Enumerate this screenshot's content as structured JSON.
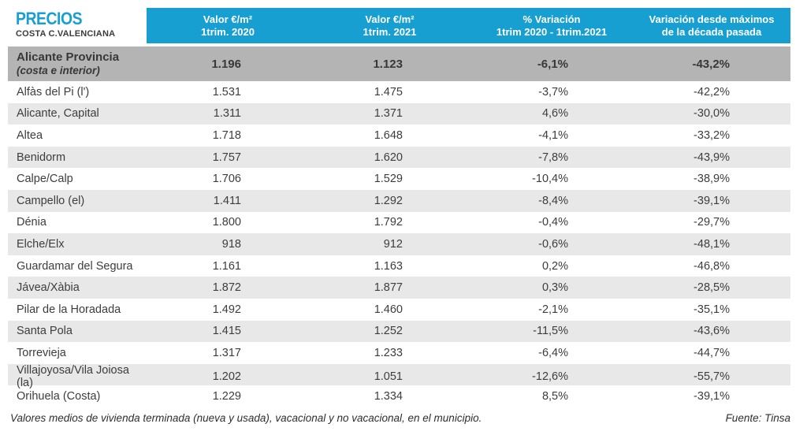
{
  "title": {
    "main": "PRECIOS",
    "subtitle": "COSTA C.VALENCIANA"
  },
  "colors": {
    "accent": "#179fd1",
    "summary_row_bg": "#b4b4b4",
    "stripe_bg": "#e8e8e8",
    "text": "#3d3d3d"
  },
  "table": {
    "headers": [
      {
        "line1": "Valor €/m²",
        "line2": "1trim. 2020"
      },
      {
        "line1": "Valor €/m²",
        "line2": "1trim. 2021"
      },
      {
        "line1": "% Variación",
        "line2": "1trim 2020 - 1trim.2021"
      },
      {
        "line1": "Variación desde máximos",
        "line2": "de la década pasada"
      }
    ],
    "summary_row": {
      "name": "Alicante Provincia",
      "note": "(costa e interior)",
      "values": [
        "1.196",
        "1.123",
        "-6,1%",
        "-43,2%"
      ]
    },
    "rows": [
      {
        "name": "Alfàs del Pi (l')",
        "values": [
          "1.531",
          "1.475",
          "-3,7%",
          "-42,2%"
        ]
      },
      {
        "name": "Alicante, Capital",
        "values": [
          "1.311",
          "1.371",
          "4,6%",
          "-30,0%"
        ]
      },
      {
        "name": "Altea",
        "values": [
          "1.718",
          "1.648",
          "-4,1%",
          "-33,2%"
        ]
      },
      {
        "name": "Benidorm",
        "values": [
          "1.757",
          "1.620",
          "-7,8%",
          "-43,9%"
        ]
      },
      {
        "name": "Calpe/Calp",
        "values": [
          "1.706",
          "1.529",
          "-10,4%",
          "-38,9%"
        ]
      },
      {
        "name": "Campello (el)",
        "values": [
          "1.411",
          "1.292",
          "-8,4%",
          "-39,1%"
        ]
      },
      {
        "name": "Dénia",
        "values": [
          "1.800",
          "1.792",
          "-0,4%",
          "-29,7%"
        ]
      },
      {
        "name": "Elche/Elx",
        "values": [
          "918",
          "912",
          "-0,6%",
          "-48,1%"
        ]
      },
      {
        "name": "Guardamar del Segura",
        "values": [
          "1.161",
          "1.163",
          "0,2%",
          "-46,8%"
        ]
      },
      {
        "name": "Jávea/Xàbia",
        "values": [
          "1.872",
          "1.877",
          "0,3%",
          "-28,5%"
        ]
      },
      {
        "name": "Pilar de la Horadada",
        "values": [
          "1.492",
          "1.460",
          "-2,1%",
          "-35,1%"
        ]
      },
      {
        "name": "Santa Pola",
        "values": [
          "1.415",
          "1.252",
          "-11,5%",
          "-43,6%"
        ]
      },
      {
        "name": "Torrevieja",
        "values": [
          "1.317",
          "1.233",
          "-6,4%",
          "-44,7%"
        ]
      },
      {
        "name": "Villajoyosa/Vila Joiosa (la)",
        "values": [
          "1.202",
          "1.051",
          "-12,6%",
          "-55,7%"
        ]
      },
      {
        "name": "Orihuela (Costa)",
        "values": [
          "1.229",
          "1.334",
          "8,5%",
          "-39,1%"
        ]
      }
    ]
  },
  "footer": {
    "note": "Valores medios de vivienda terminada (nueva y usada), vacacional y no vacacional, en el municipio.",
    "source": "Fuente: Tinsa"
  }
}
